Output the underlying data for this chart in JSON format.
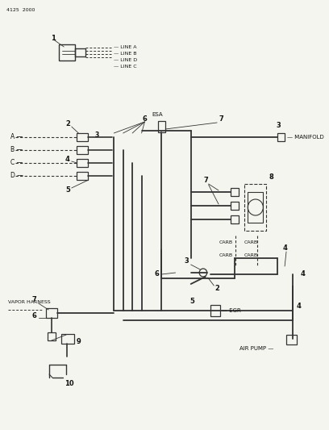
{
  "title": "4125  2000",
  "bg_color": "#f5f5f0",
  "line_color": "#333333",
  "text_color": "#111111",
  "lw_main": 1.5,
  "lw_thin": 0.8,
  "fs_label": 5.0,
  "fs_num": 6.0,
  "line_labels": [
    "LINE A",
    "LINE B",
    "LINE D",
    "LINE C"
  ]
}
